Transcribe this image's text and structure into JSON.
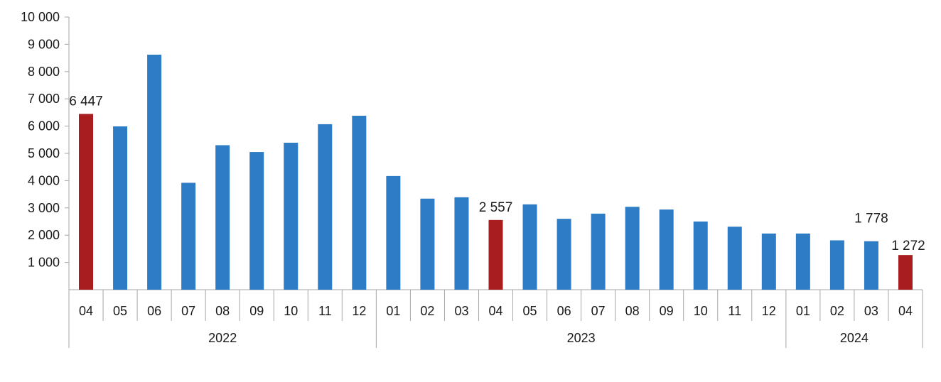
{
  "chart_data": {
    "type": "bar",
    "title": "",
    "xlabel": "",
    "ylabel": "",
    "ylim": [
      0,
      10000
    ],
    "yticks": [
      {
        "value": 1000,
        "label": "1 000"
      },
      {
        "value": 2000,
        "label": "2 000"
      },
      {
        "value": 3000,
        "label": "3 000"
      },
      {
        "value": 4000,
        "label": "4 000"
      },
      {
        "value": 5000,
        "label": "5 000"
      },
      {
        "value": 6000,
        "label": "6 000"
      },
      {
        "value": 7000,
        "label": "7 000"
      },
      {
        "value": 8000,
        "label": "8 000"
      },
      {
        "value": 9000,
        "label": "9 000"
      },
      {
        "value": 10000,
        "label": "10 000"
      }
    ],
    "grid": false,
    "legend": "none",
    "colors": {
      "normal": "#2e7cc4",
      "highlight": "#a81d1d"
    },
    "categories": [
      {
        "month": "04",
        "year": "2022",
        "value": 6447,
        "highlight": true,
        "label": "6 447"
      },
      {
        "month": "05",
        "year": "2022",
        "value": 5990
      },
      {
        "month": "06",
        "year": "2022",
        "value": 8620
      },
      {
        "month": "07",
        "year": "2022",
        "value": 3920
      },
      {
        "month": "08",
        "year": "2022",
        "value": 5300
      },
      {
        "month": "09",
        "year": "2022",
        "value": 5050
      },
      {
        "month": "10",
        "year": "2022",
        "value": 5390
      },
      {
        "month": "11",
        "year": "2022",
        "value": 6070
      },
      {
        "month": "12",
        "year": "2022",
        "value": 6380
      },
      {
        "month": "01",
        "year": "2023",
        "value": 4170
      },
      {
        "month": "02",
        "year": "2023",
        "value": 3340
      },
      {
        "month": "03",
        "year": "2023",
        "value": 3390
      },
      {
        "month": "04",
        "year": "2023",
        "value": 2557,
        "highlight": true,
        "label": "2 557"
      },
      {
        "month": "05",
        "year": "2023",
        "value": 3130
      },
      {
        "month": "06",
        "year": "2023",
        "value": 2600
      },
      {
        "month": "07",
        "year": "2023",
        "value": 2790
      },
      {
        "month": "08",
        "year": "2023",
        "value": 3040
      },
      {
        "month": "09",
        "year": "2023",
        "value": 2940
      },
      {
        "month": "10",
        "year": "2023",
        "value": 2500
      },
      {
        "month": "11",
        "year": "2023",
        "value": 2310
      },
      {
        "month": "12",
        "year": "2023",
        "value": 2060
      },
      {
        "month": "01",
        "year": "2024",
        "value": 2060
      },
      {
        "month": "02",
        "year": "2024",
        "value": 1810
      },
      {
        "month": "03",
        "year": "2024",
        "value": 1778,
        "label": "1 778"
      },
      {
        "month": "04",
        "year": "2024",
        "value": 1272,
        "highlight": true,
        "label": "1 272"
      }
    ],
    "years": [
      "2022",
      "2023",
      "2024"
    ]
  }
}
